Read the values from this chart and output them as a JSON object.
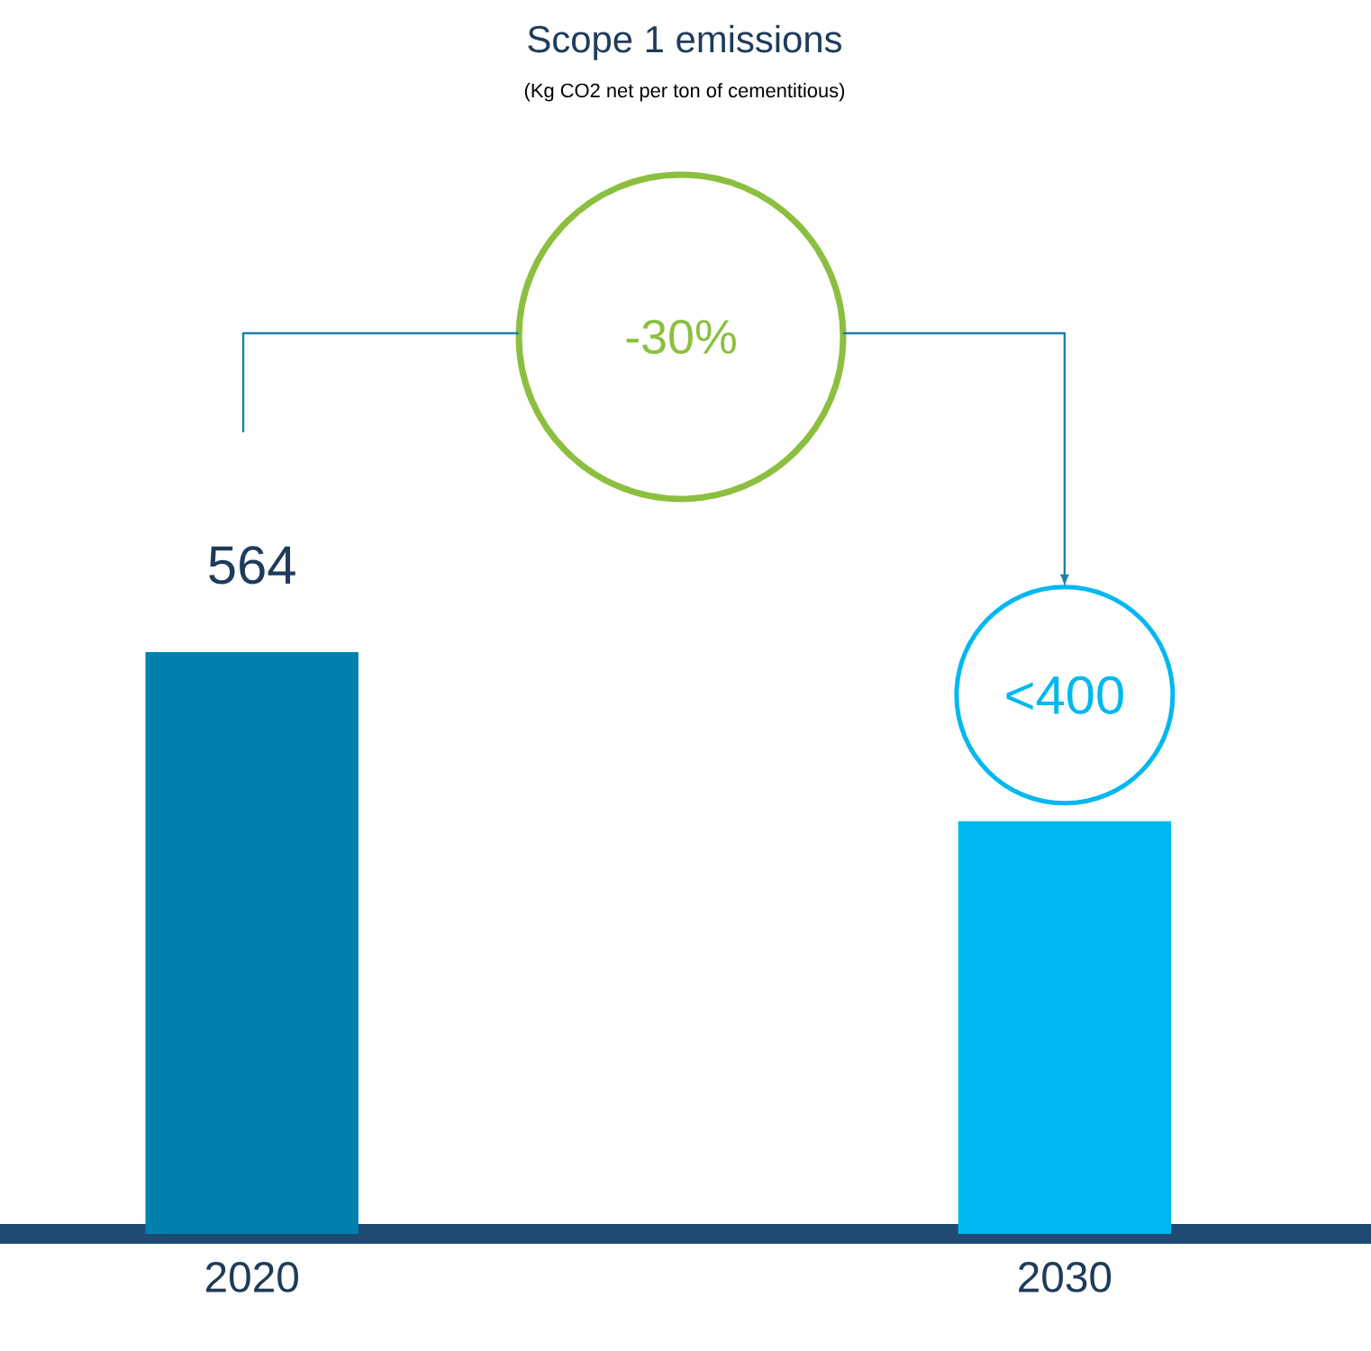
{
  "chart_data": {
    "type": "bar",
    "title": "Scope 1 emissions",
    "subtitle": "(Kg CO2 net per ton of cementitious)",
    "categories": [
      "2020",
      "2030"
    ],
    "values": [
      564,
      400
    ],
    "colors": [
      "#0080ad",
      "#00b8f0"
    ],
    "value_labels": [
      "564",
      "<400"
    ],
    "annotations": [
      "-30%"
    ],
    "legend": false,
    "grid": false
  }
}
